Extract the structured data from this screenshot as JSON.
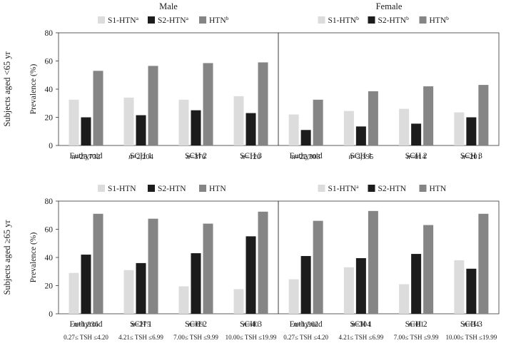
{
  "col_titles": [
    "Male",
    "Female"
  ],
  "row_titles": [
    "Subjects aged <65 yr",
    "Subjects aged ≥65 yr"
  ],
  "colors": {
    "S1": "#dcdcdc",
    "S2": "#1c1c1c",
    "HTN": "#858585"
  },
  "chart_data": [
    {
      "type": "bar",
      "categories": [
        "Euthyroid",
        "SCH 1",
        "SCH 2",
        "SCH 3"
      ],
      "n_labels": [
        "n=23,732",
        "n=2,204",
        "n=376",
        "n=126"
      ],
      "ylabel": "Prevalence (%)",
      "ylim": [
        0,
        80
      ],
      "yticks": [
        0,
        20,
        40,
        60,
        80
      ],
      "legend": [
        {
          "label": "S1-HTN",
          "sup": "a"
        },
        {
          "label": "S2-HTN",
          "sup": "a"
        },
        {
          "label": "HTN",
          "sup": "b"
        }
      ],
      "series": [
        {
          "values": [
            32.5,
            34,
            32.5,
            35
          ]
        },
        {
          "values": [
            20,
            21.5,
            25,
            23
          ]
        },
        {
          "values": [
            53,
            56.5,
            58.5,
            59
          ]
        }
      ]
    },
    {
      "type": "bar",
      "categories": [
        "Euthyroid",
        "SCH 1",
        "SCH 2",
        "SCH 3"
      ],
      "n_labels": [
        "n=22,303",
        "n=3,395",
        "n=614",
        "n=201"
      ],
      "ylabel": "",
      "ylim": [
        0,
        80
      ],
      "yticks": [],
      "legend": [
        {
          "label": "S1-HTN",
          "sup": "b"
        },
        {
          "label": "S2-HTN",
          "sup": "b"
        },
        {
          "label": "HTN",
          "sup": "b"
        }
      ],
      "series": [
        {
          "values": [
            22,
            24.5,
            26,
            23.5
          ]
        },
        {
          "values": [
            11,
            13.5,
            15.5,
            20
          ]
        },
        {
          "values": [
            32.5,
            38.5,
            42,
            43
          ]
        }
      ]
    },
    {
      "type": "bar",
      "categories": [
        "Euthyroid",
        "SCH 1",
        "SCH 2",
        "SCH 3"
      ],
      "n_labels": [
        "n=1,836",
        "n=275",
        "n=69",
        "n=40"
      ],
      "tsh_labels": [
        "0.27≤ TSH ≤4.20",
        "4.21≤ TSH ≤6.99",
        "7.00≤ TSH ≤9.99",
        "10.00≤ TSH ≤19.99"
      ],
      "ylabel": "Prevalence (%)",
      "ylim": [
        0,
        80
      ],
      "yticks": [
        0,
        20,
        40,
        60,
        80
      ],
      "legend": [
        {
          "label": "S1-HTN",
          "sup": ""
        },
        {
          "label": "S2-HTN",
          "sup": ""
        },
        {
          "label": "HTN",
          "sup": ""
        }
      ],
      "series": [
        {
          "values": [
            29,
            31,
            19.5,
            17.5
          ]
        },
        {
          "values": [
            42,
            36,
            43,
            55
          ]
        },
        {
          "values": [
            71,
            67.5,
            64,
            72.5
          ]
        }
      ]
    },
    {
      "type": "bar",
      "categories": [
        "Euthyroid",
        "SCH 1",
        "SCH 2",
        "SCH 3"
      ],
      "n_labels": [
        "n=1,562",
        "n=304",
        "n=81",
        "n=34"
      ],
      "tsh_labels": [
        "0.27≤ TSH ≤4.20",
        "4.21≤ TSH ≤6.99",
        "7.00≤ TSH ≤9.99",
        "10.00≤ TSH ≤19.99"
      ],
      "ylabel": "",
      "ylim": [
        0,
        80
      ],
      "yticks": [],
      "legend": [
        {
          "label": "S1-HTN",
          "sup": "a"
        },
        {
          "label": "S2-HTN",
          "sup": ""
        },
        {
          "label": "HTN",
          "sup": ""
        }
      ],
      "series": [
        {
          "values": [
            24.5,
            33,
            21,
            38
          ]
        },
        {
          "values": [
            41,
            39.5,
            42.5,
            32
          ]
        },
        {
          "values": [
            66,
            73,
            63,
            71
          ]
        }
      ]
    }
  ]
}
